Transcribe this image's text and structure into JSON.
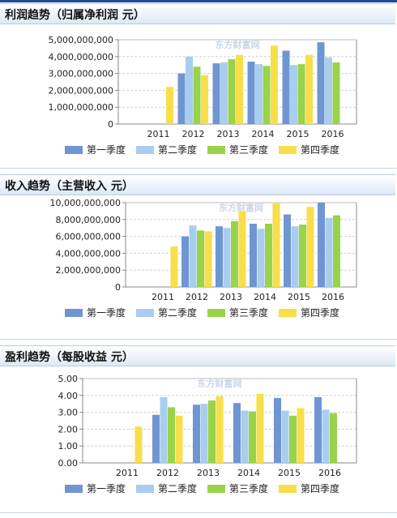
{
  "chart_data": [
    {
      "type": "bar",
      "title": "利润趋势（归属净利润 元）",
      "categories": [
        "2011",
        "2012",
        "2013",
        "2014",
        "2015",
        "2016"
      ],
      "ylim": [
        0,
        5000000000
      ],
      "yticks": [
        "0",
        "1,000,000,000",
        "2,000,000,000",
        "3,000,000,000",
        "4,000,000,000",
        "5,000,000,000"
      ],
      "grid": true,
      "legend_position": "bottom",
      "series": [
        {
          "name": "第一季度",
          "color": "#6f96d2",
          "values": [
            null,
            3000000000,
            3600000000,
            3700000000,
            4350000000,
            4850000000
          ]
        },
        {
          "name": "第二季度",
          "color": "#a9cdee",
          "values": [
            null,
            4000000000,
            3650000000,
            3550000000,
            3500000000,
            3950000000
          ]
        },
        {
          "name": "第三季度",
          "color": "#98d34a",
          "values": [
            null,
            3400000000,
            3850000000,
            3450000000,
            3550000000,
            3650000000
          ]
        },
        {
          "name": "第四季度",
          "color": "#f8de4a",
          "values": [
            2200000000,
            2900000000,
            4100000000,
            4650000000,
            4100000000,
            null
          ]
        }
      ]
    },
    {
      "type": "bar",
      "title": "收入趋势（主营收入 元）",
      "categories": [
        "2011",
        "2012",
        "2013",
        "2014",
        "2015",
        "2016"
      ],
      "ylim": [
        0,
        10000000000
      ],
      "yticks": [
        "0",
        "2,000,000,000",
        "4,000,000,000",
        "6,000,000,000",
        "8,000,000,000",
        "10,000,000,000"
      ],
      "grid": true,
      "legend_position": "bottom",
      "series": [
        {
          "name": "第一季度",
          "color": "#6f96d2",
          "values": [
            null,
            6000000000,
            7200000000,
            7500000000,
            8600000000,
            10000000000
          ]
        },
        {
          "name": "第二季度",
          "color": "#a9cdee",
          "values": [
            null,
            7300000000,
            7000000000,
            6900000000,
            7200000000,
            8200000000
          ]
        },
        {
          "name": "第三季度",
          "color": "#98d34a",
          "values": [
            null,
            6700000000,
            7800000000,
            7500000000,
            7400000000,
            8500000000
          ]
        },
        {
          "name": "第四季度",
          "color": "#f8de4a",
          "values": [
            4800000000,
            6600000000,
            9000000000,
            9900000000,
            9500000000,
            null
          ]
        }
      ]
    },
    {
      "type": "bar",
      "title": "盈利趋势（每股收益 元）",
      "categories": [
        "2011",
        "2012",
        "2013",
        "2014",
        "2015",
        "2016"
      ],
      "ylim": [
        0,
        5
      ],
      "yticks": [
        "0.00",
        "1.00",
        "2.00",
        "3.00",
        "4.00",
        "5.00"
      ],
      "grid": true,
      "legend_position": "bottom",
      "series": [
        {
          "name": "第一季度",
          "color": "#6f96d2",
          "values": [
            null,
            2.85,
            3.45,
            3.55,
            3.85,
            3.9
          ]
        },
        {
          "name": "第二季度",
          "color": "#a9cdee",
          "values": [
            null,
            3.9,
            3.5,
            3.1,
            3.1,
            3.15
          ]
        },
        {
          "name": "第三季度",
          "color": "#98d34a",
          "values": [
            null,
            3.3,
            3.7,
            3.05,
            2.8,
            2.95
          ]
        },
        {
          "name": "第四季度",
          "color": "#f8de4a",
          "values": [
            2.15,
            2.8,
            3.95,
            4.1,
            3.25,
            null
          ]
        }
      ]
    }
  ],
  "watermark": "东方财富网"
}
